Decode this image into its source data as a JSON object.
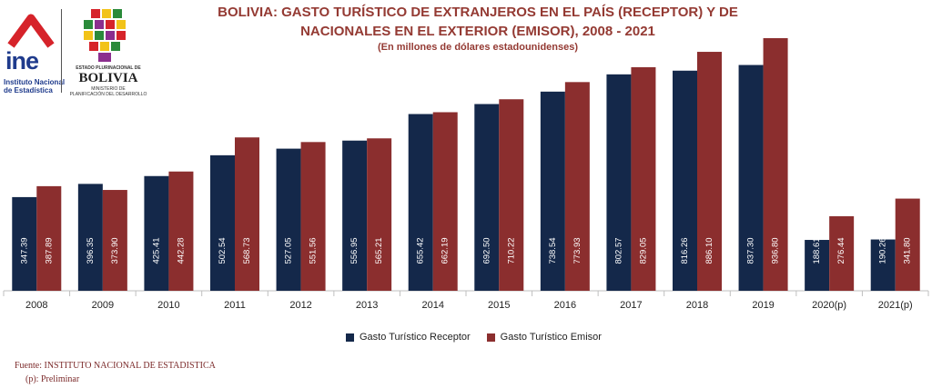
{
  "header": {
    "title_line1": "BOLIVIA: GASTO TURÍSTICO DE EXTRANJEROS EN EL PAÍS (RECEPTOR) Y DE",
    "title_line2": "NACIONALES EN EL EXTERIOR (EMISOR), 2008 - 2021",
    "subtitle": "(En millones de dólares estadounidenses)"
  },
  "logos": {
    "ine_text": "ine",
    "ine_sub1": "Instituto Nacional",
    "ine_sub2": "de Estadística",
    "bolivia_top": "ESTADO PLURINACIONAL DE",
    "bolivia_name": "BOLIVIA",
    "bolivia_sub1": "MINISTERIO DE",
    "bolivia_sub2": "PLANIFICACIÓN DEL DESARROLLO"
  },
  "footer": {
    "source": "Fuente: INSTITUTO NACIONAL DE ESTADISTICA",
    "note": "(p): Preliminar"
  },
  "colors": {
    "receptor": "#14284a",
    "emisor": "#8b2e2e"
  },
  "chart_data": {
    "type": "bar",
    "categories": [
      "2008",
      "2009",
      "2010",
      "2011",
      "2012",
      "2013",
      "2014",
      "2015",
      "2016",
      "2017",
      "2018",
      "2019",
      "2020(p)",
      "2021(p)"
    ],
    "series": [
      {
        "name": "Gasto Turístico Receptor",
        "values": [
          347.39,
          396.35,
          425.41,
          502.54,
          527.05,
          556.95,
          655.42,
          692.5,
          738.54,
          802.57,
          816.26,
          837.3,
          188.61,
          190.26
        ]
      },
      {
        "name": "Gasto Turístico Emisor",
        "values": [
          387.89,
          373.9,
          442.28,
          568.73,
          551.56,
          565.21,
          662.19,
          710.22,
          773.93,
          829.05,
          886.1,
          936.8,
          276.44,
          341.8
        ]
      }
    ],
    "value_labels": [
      [
        "347.39",
        "396.35",
        "425.41",
        "502.54",
        "527.05",
        "556.95",
        "655.42",
        "692.50",
        "738.54",
        "802.57",
        "816.26",
        "837.30",
        "188.61",
        "190.26"
      ],
      [
        "387.89",
        "373.90",
        "442.28",
        "568.73",
        "551.56",
        "565.21",
        "662.19",
        "710.22",
        "773.93",
        "829.05",
        "886.10",
        "936.80",
        "276.44",
        "341.80"
      ]
    ],
    "ylim": [
      0,
      1000
    ],
    "grid": false,
    "legend_position": "bottom"
  }
}
